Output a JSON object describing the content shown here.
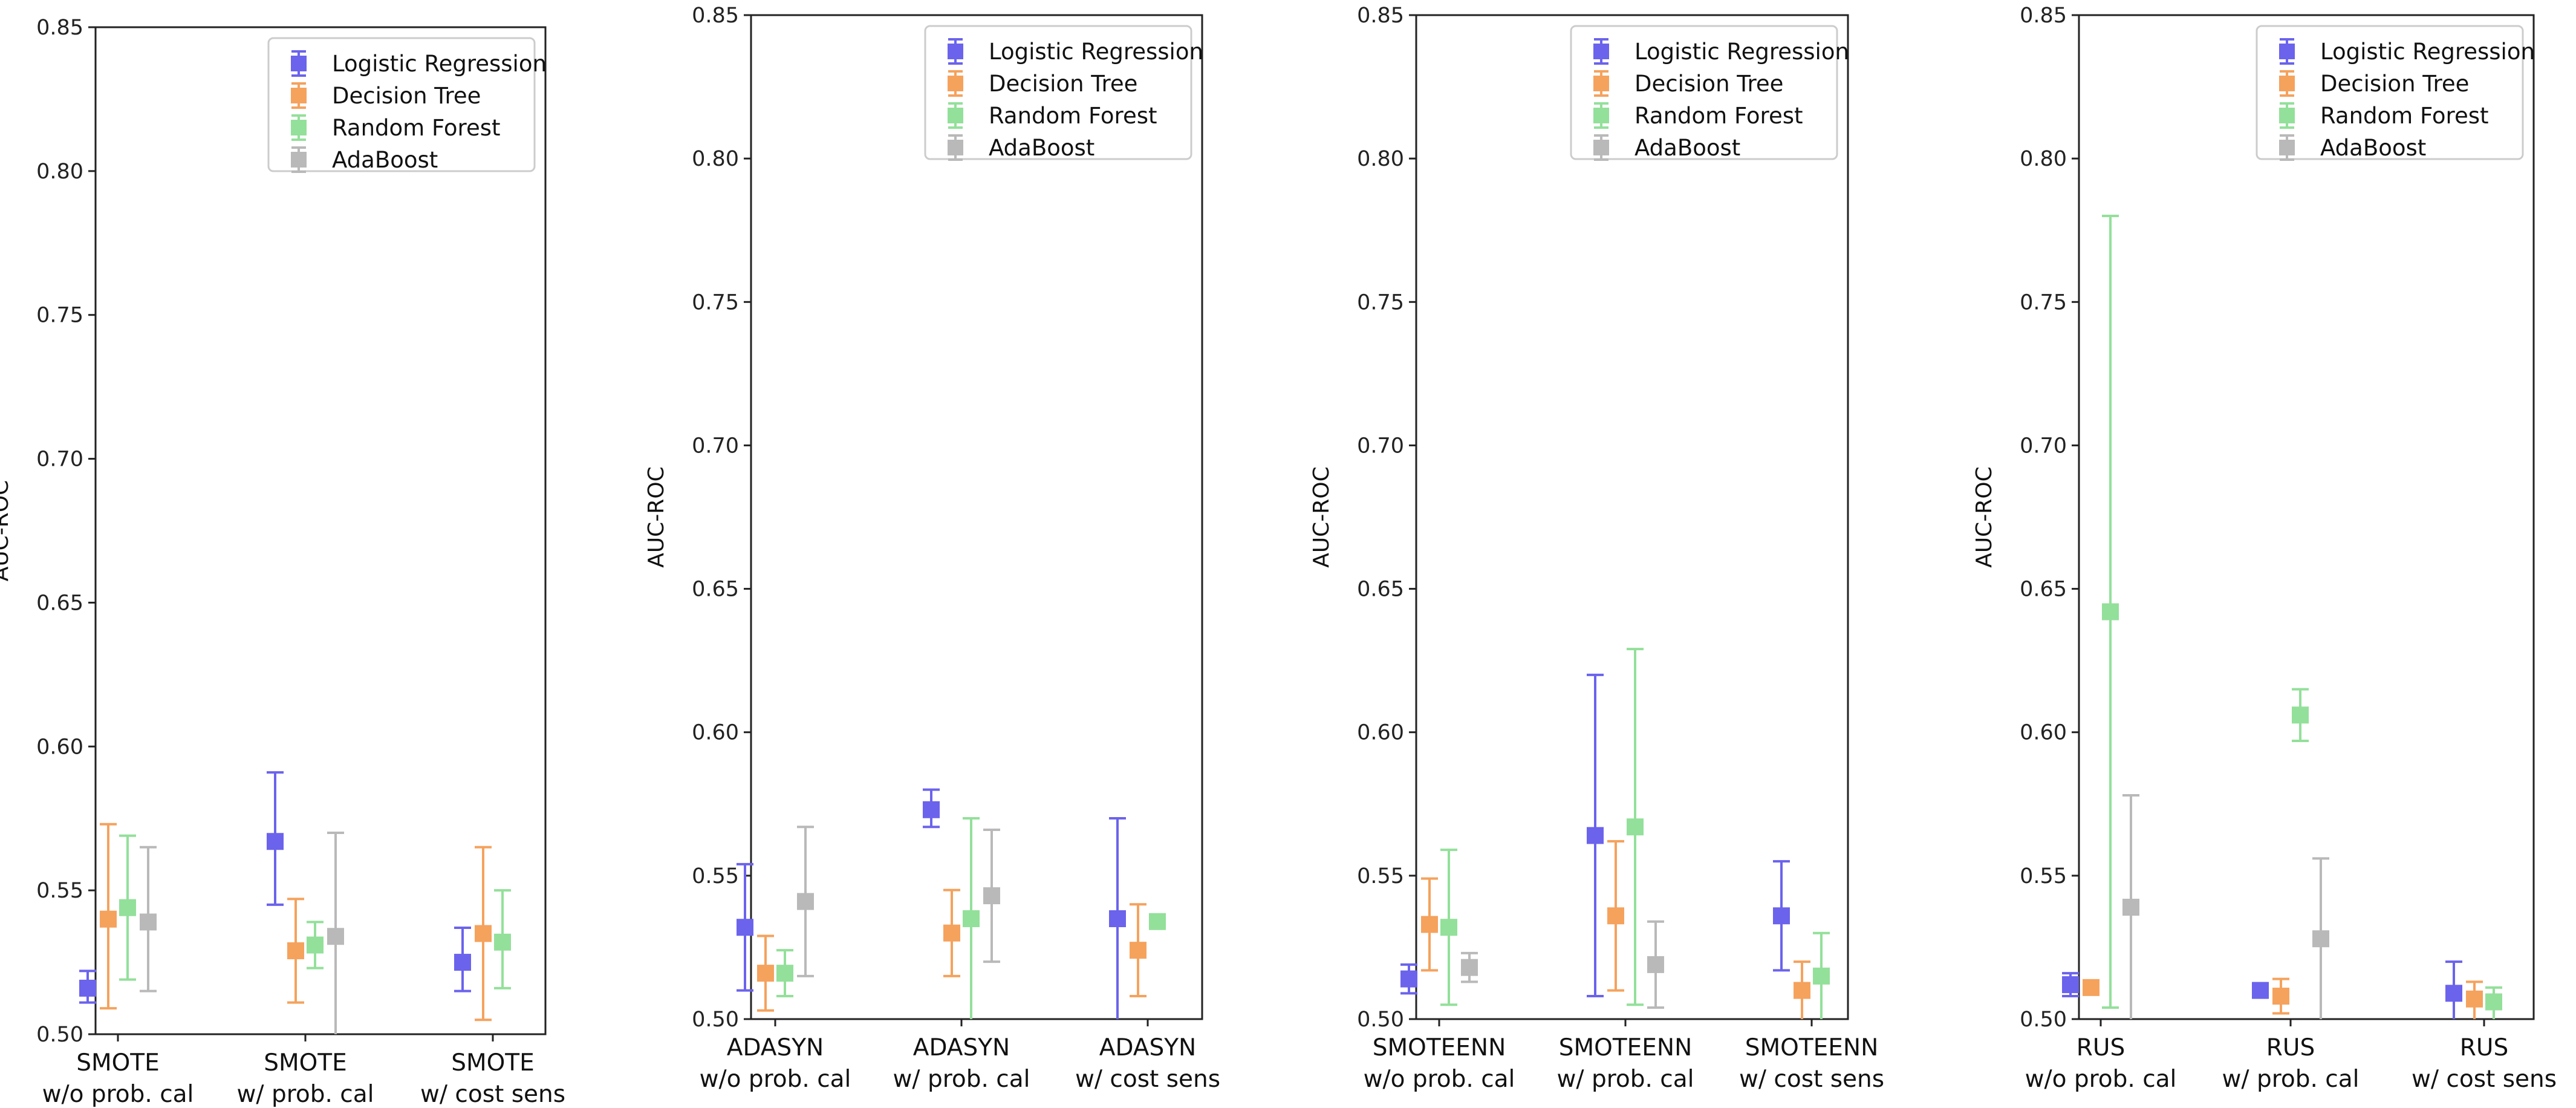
{
  "chart_data": [
    {
      "type": "scatter",
      "ylabel": "AUC-ROC",
      "ylim": [
        0.5,
        0.85
      ],
      "yticks": [
        "0.50",
        "0.55",
        "0.60",
        "0.65",
        "0.70",
        "0.75",
        "0.80",
        "0.85"
      ],
      "categories": [
        {
          "top": "SMOTE",
          "bottom": "w/o prob. cal"
        },
        {
          "top": "SMOTE",
          "bottom": "w/   prob. cal"
        },
        {
          "top": "SMOTE",
          "bottom": "w/  cost sens"
        }
      ],
      "series": [
        {
          "name": "Logistic Regression",
          "values": [
            0.516,
            0.567,
            0.525
          ],
          "lower": [
            0.511,
            0.545,
            0.515
          ],
          "upper": [
            0.522,
            0.591,
            0.537
          ]
        },
        {
          "name": "Decision Tree",
          "values": [
            0.54,
            0.529,
            0.535
          ],
          "lower": [
            0.509,
            0.511,
            0.505
          ],
          "upper": [
            0.573,
            0.547,
            0.565
          ]
        },
        {
          "name": "Random Forest",
          "values": [
            0.544,
            0.531,
            0.532
          ],
          "lower": [
            0.519,
            0.523,
            0.516
          ],
          "upper": [
            0.569,
            0.539,
            0.55
          ]
        },
        {
          "name": "AdaBoost",
          "values": [
            0.539,
            0.534,
            null
          ],
          "lower": [
            0.515,
            0.5,
            null
          ],
          "upper": [
            0.565,
            0.57,
            null
          ]
        }
      ]
    },
    {
      "type": "scatter",
      "ylabel": "AUC-ROC",
      "ylim": [
        0.5,
        0.85
      ],
      "yticks": [
        "0.50",
        "0.55",
        "0.60",
        "0.65",
        "0.70",
        "0.75",
        "0.80",
        "0.85"
      ],
      "categories": [
        {
          "top": "ADASYN",
          "bottom": "w/o prob. cal"
        },
        {
          "top": "ADASYN",
          "bottom": "w/   prob. cal"
        },
        {
          "top": "ADASYN",
          "bottom": "w/  cost sens"
        }
      ],
      "series": [
        {
          "name": "Logistic Regression",
          "values": [
            0.532,
            0.573,
            0.535
          ],
          "lower": [
            0.51,
            0.567,
            0.5
          ],
          "upper": [
            0.554,
            0.58,
            0.57
          ]
        },
        {
          "name": "Decision Tree",
          "values": [
            0.516,
            0.53,
            0.524
          ],
          "lower": [
            0.503,
            0.515,
            0.508
          ],
          "upper": [
            0.529,
            0.545,
            0.54
          ]
        },
        {
          "name": "Random Forest",
          "values": [
            0.516,
            0.535,
            0.534
          ],
          "lower": [
            0.508,
            0.5,
            0.532
          ],
          "upper": [
            0.524,
            0.57,
            0.536
          ]
        },
        {
          "name": "AdaBoost",
          "values": [
            0.541,
            0.543,
            null
          ],
          "lower": [
            0.515,
            0.52,
            null
          ],
          "upper": [
            0.567,
            0.566,
            null
          ]
        }
      ]
    },
    {
      "type": "scatter",
      "ylabel": "AUC-ROC",
      "ylim": [
        0.5,
        0.85
      ],
      "yticks": [
        "0.50",
        "0.55",
        "0.60",
        "0.65",
        "0.70",
        "0.75",
        "0.80",
        "0.85"
      ],
      "categories": [
        {
          "top": "SMOTEENN",
          "bottom": "w/o prob. cal"
        },
        {
          "top": "SMOTEENN",
          "bottom": "w/    prob. cal"
        },
        {
          "top": "SMOTEENN",
          "bottom": "w/   cost sens"
        }
      ],
      "series": [
        {
          "name": "Logistic Regression",
          "values": [
            0.514,
            0.564,
            0.536
          ],
          "lower": [
            0.509,
            0.508,
            0.517
          ],
          "upper": [
            0.519,
            0.62,
            0.555
          ]
        },
        {
          "name": "Decision Tree",
          "values": [
            0.533,
            0.536,
            0.51
          ],
          "lower": [
            0.517,
            0.51,
            0.5
          ],
          "upper": [
            0.549,
            0.562,
            0.52
          ]
        },
        {
          "name": "Random Forest",
          "values": [
            0.532,
            0.567,
            0.515
          ],
          "lower": [
            0.505,
            0.505,
            0.5
          ],
          "upper": [
            0.559,
            0.629,
            0.53
          ]
        },
        {
          "name": "AdaBoost",
          "values": [
            0.518,
            0.519,
            null
          ],
          "lower": [
            0.513,
            0.504,
            null
          ],
          "upper": [
            0.523,
            0.534,
            null
          ]
        }
      ]
    },
    {
      "type": "scatter",
      "ylabel": "AUC-ROC",
      "ylim": [
        0.5,
        0.85
      ],
      "yticks": [
        "0.50",
        "0.55",
        "0.60",
        "0.65",
        "0.70",
        "0.75",
        "0.80",
        "0.85"
      ],
      "categories": [
        {
          "top": "RUS",
          "bottom": "w/o prob. cal"
        },
        {
          "top": "RUS",
          "bottom": "w/   prob. cal"
        },
        {
          "top": "RUS",
          "bottom": "w/   cost sens"
        }
      ],
      "series": [
        {
          "name": "Logistic Regression",
          "values": [
            0.512,
            0.51,
            0.509
          ],
          "lower": [
            0.508,
            0.508,
            0.5
          ],
          "upper": [
            0.516,
            0.512,
            0.52
          ]
        },
        {
          "name": "Decision Tree",
          "values": [
            0.511,
            0.508,
            0.507
          ],
          "lower": [
            0.509,
            0.502,
            0.5
          ],
          "upper": [
            0.513,
            0.514,
            0.513
          ]
        },
        {
          "name": "Random Forest",
          "values": [
            0.642,
            0.606,
            0.506
          ],
          "lower": [
            0.504,
            0.597,
            0.5
          ],
          "upper": [
            0.78,
            0.615,
            0.511
          ]
        },
        {
          "name": "AdaBoost",
          "values": [
            0.539,
            0.528,
            null
          ],
          "lower": [
            0.5,
            0.5,
            null
          ],
          "upper": [
            0.578,
            0.556,
            null
          ]
        }
      ]
    }
  ],
  "legend": {
    "placement": "top-right",
    "entries": [
      "Logistic Regression",
      "Decision Tree",
      "Random Forest",
      "AdaBoost"
    ]
  },
  "colors": {
    "Logistic Regression": "#6b63ec",
    "Decision Tree": "#f5a25d",
    "Random Forest": "#93e09a",
    "AdaBoost": "#b9b9b9",
    "axis": "#222222",
    "frame": "#222222"
  },
  "legend_icon": "square-marker-with-errorbar-icon"
}
